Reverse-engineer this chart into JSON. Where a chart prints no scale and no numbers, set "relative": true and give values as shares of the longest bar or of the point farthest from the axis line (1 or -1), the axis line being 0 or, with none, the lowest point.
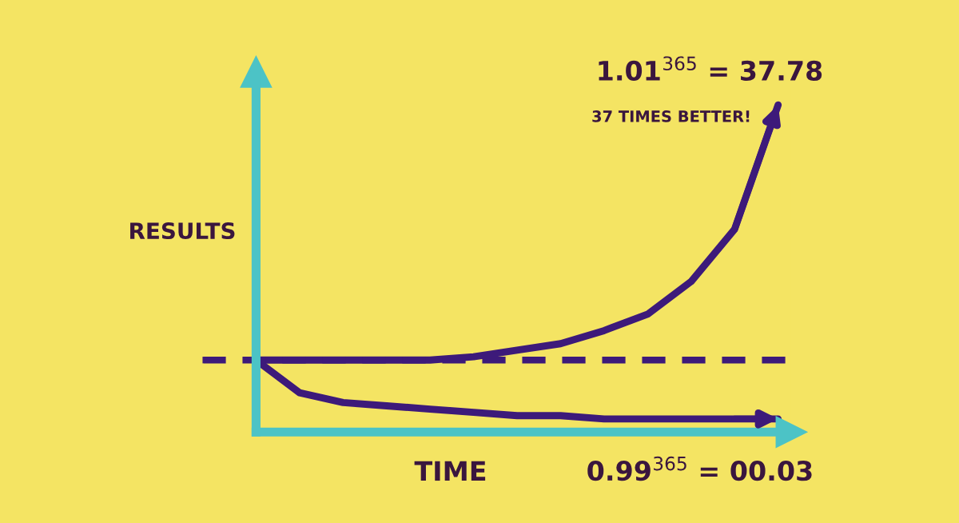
{
  "chart_data": {
    "type": "line",
    "relative": true,
    "xlabel": "TIME",
    "ylabel": "RESULTS",
    "categories": [
      null,
      null,
      null,
      null,
      null,
      null,
      null,
      null,
      null,
      null,
      null,
      null,
      null
    ],
    "series": [
      {
        "color": "#3d1a7a",
        "values": [
          0.22,
          0.22,
          0.22,
          0.22,
          0.22,
          0.23,
          0.25,
          0.27,
          0.31,
          0.36,
          0.46,
          0.62,
          1.0
        ]
      },
      {
        "color": "#3d1a7a",
        "values": [
          0.22,
          0.12,
          0.09,
          0.08,
          0.07,
          0.06,
          0.05,
          0.05,
          0.04,
          0.04,
          0.04,
          0.04,
          0.04
        ]
      }
    ],
    "ref_lines": [
      {
        "axis": "y",
        "value": 0.22,
        "color": "#3d1a7a",
        "line_style": "dashed"
      }
    ],
    "annotations": [
      "1.01$^{365}$ = 37.78",
      "37 TIMES BETTER!",
      "0.99$^{365}$ = 00.03"
    ],
    "marker": "none",
    "line_style": "solid"
  }
}
